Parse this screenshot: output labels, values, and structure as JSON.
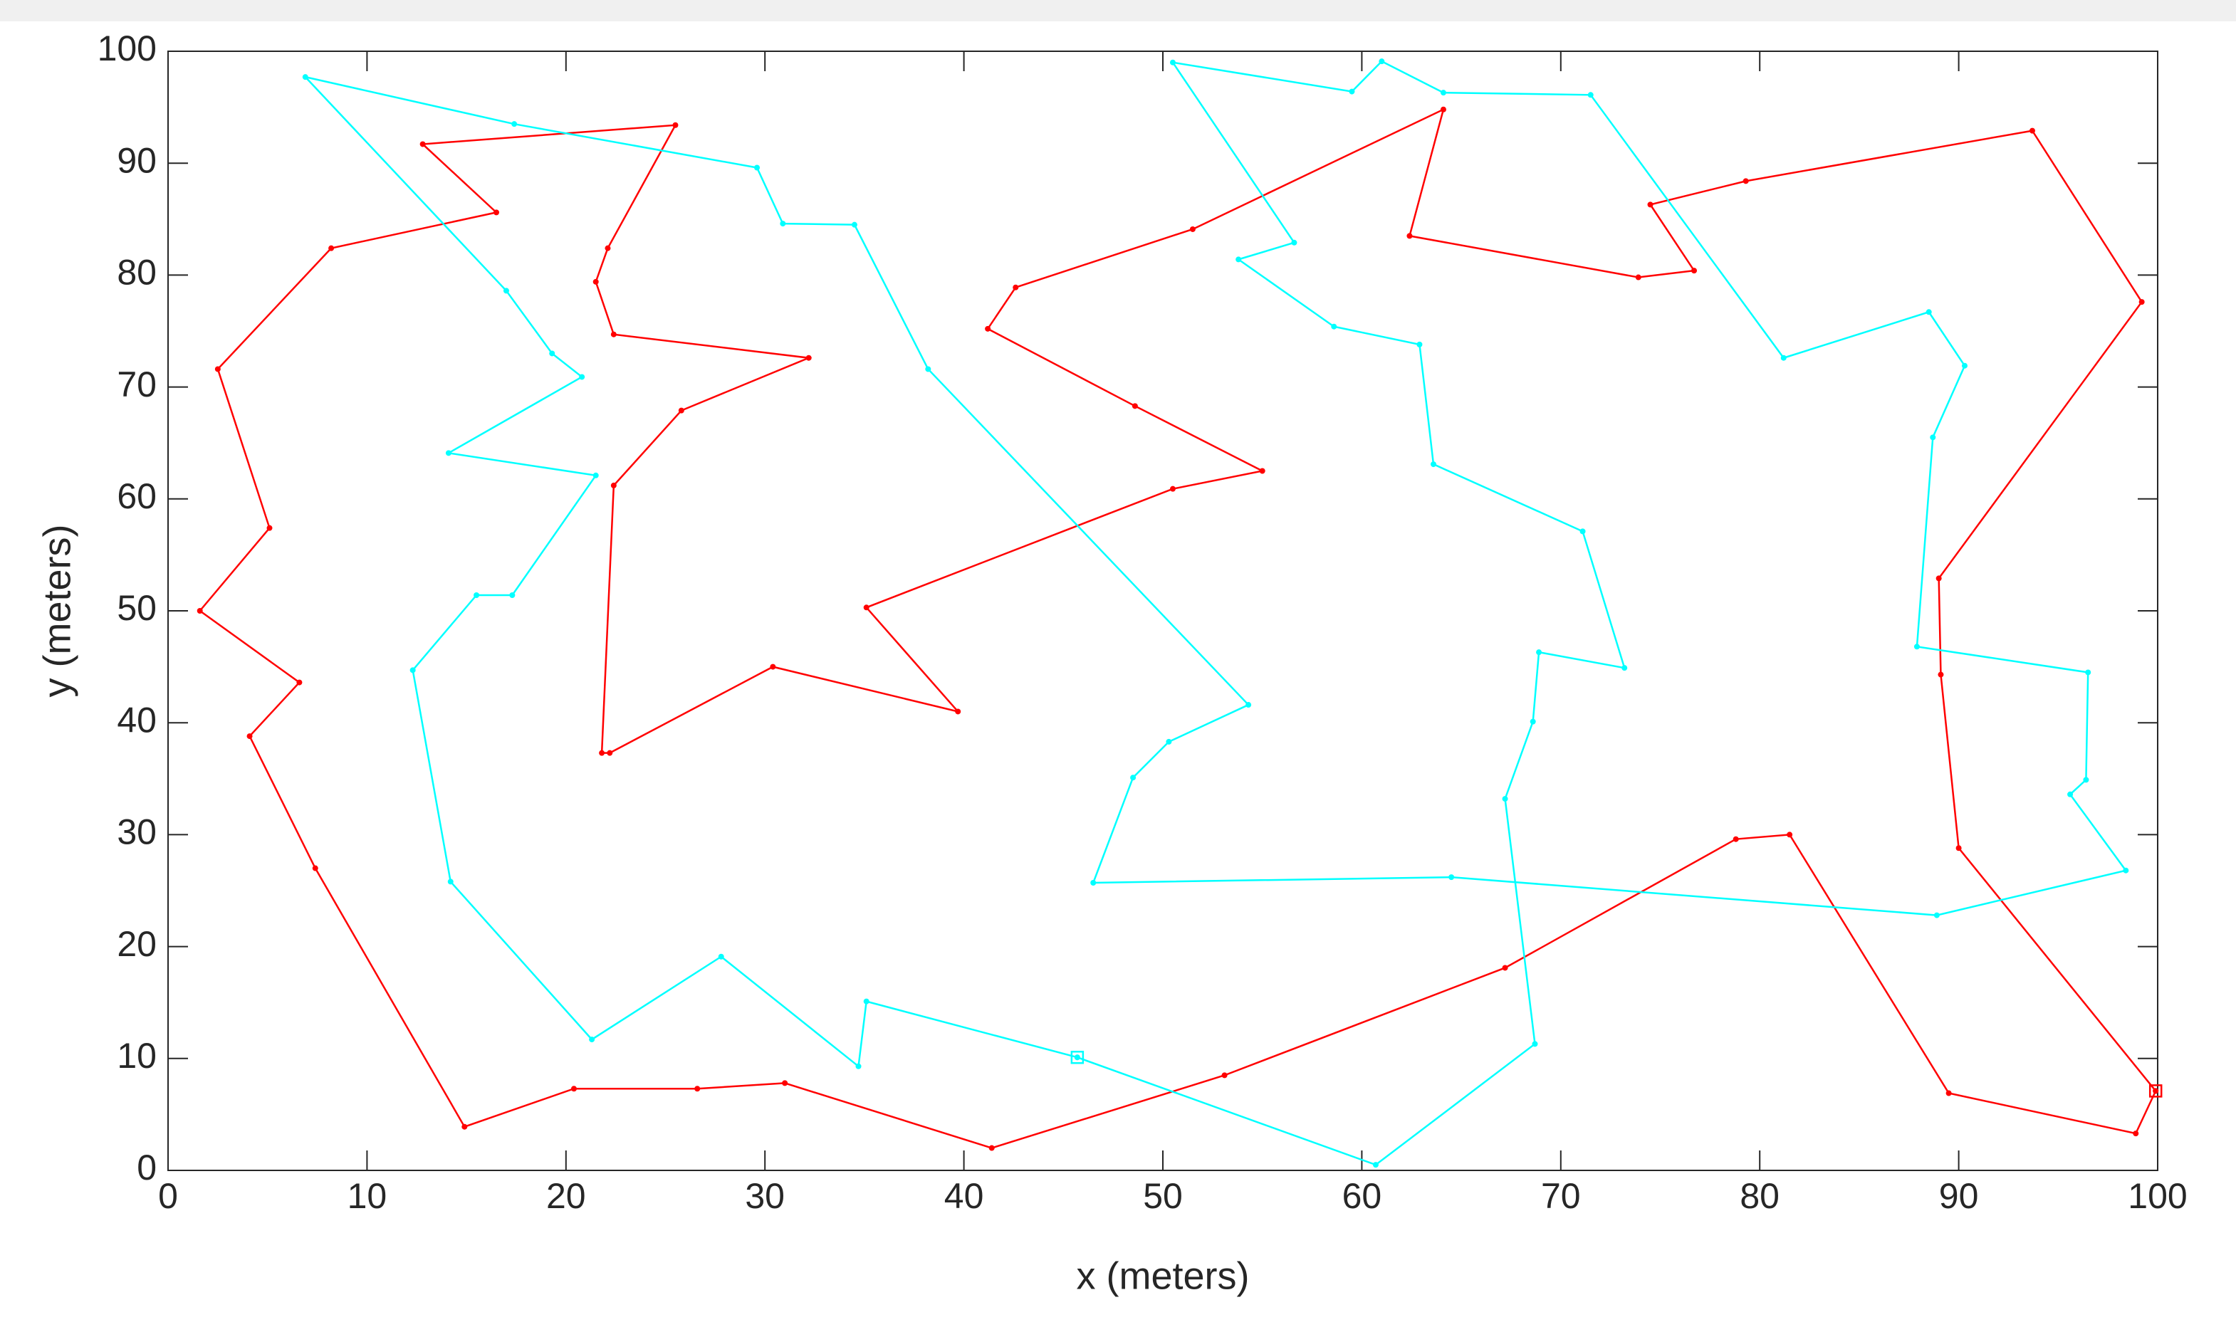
{
  "chart_data": {
    "type": "line",
    "xlabel": "x (meters)",
    "ylabel": "y (meters)",
    "xlim": [
      0,
      100
    ],
    "ylim": [
      0,
      100
    ],
    "xticks": [
      0,
      10,
      20,
      30,
      40,
      50,
      60,
      70,
      80,
      90,
      100
    ],
    "yticks": [
      0,
      10,
      20,
      30,
      40,
      50,
      60,
      70,
      80,
      90,
      100
    ],
    "grid": false,
    "marker": "dot",
    "start_marker": "square",
    "series": [
      {
        "color": "#ff0000",
        "x": [
          99.9,
          90.0,
          89.1,
          89.0,
          99.2,
          93.7,
          79.3,
          74.5,
          76.7,
          73.9,
          62.4,
          64.1,
          51.5,
          42.6,
          41.2,
          48.6,
          55.0,
          50.5,
          35.1,
          39.7,
          30.4,
          22.2,
          21.8,
          22.4,
          25.8,
          32.2,
          22.4,
          21.5,
          22.1,
          25.5,
          12.8,
          16.5,
          8.2,
          2.5,
          5.1,
          1.6,
          6.6,
          4.1,
          7.4,
          14.9,
          20.4,
          26.6,
          31.0,
          41.4,
          53.1,
          67.2,
          78.8,
          81.5,
          89.5,
          98.9,
          99.9
        ],
        "values": [
          7.1,
          28.8,
          44.3,
          52.9,
          77.6,
          92.9,
          88.4,
          86.3,
          80.4,
          79.8,
          83.5,
          94.8,
          84.1,
          78.9,
          75.2,
          68.3,
          62.5,
          60.9,
          50.3,
          41.0,
          45.0,
          37.3,
          37.3,
          61.2,
          67.9,
          72.6,
          74.7,
          79.4,
          82.4,
          93.4,
          91.7,
          85.6,
          82.4,
          71.6,
          57.4,
          50.0,
          43.6,
          38.8,
          27.0,
          3.9,
          7.3,
          7.3,
          7.8,
          2.0,
          8.5,
          18.1,
          29.6,
          30.0,
          6.9,
          3.3,
          7.1
        ]
      },
      {
        "color": "#00ffff",
        "x": [
          45.7,
          35.1,
          34.7,
          27.8,
          21.3,
          14.2,
          12.3,
          15.5,
          17.3,
          21.5,
          14.1,
          20.8,
          19.3,
          17.0,
          6.9,
          17.4,
          29.6,
          30.9,
          34.5,
          38.2,
          54.3,
          50.3,
          48.5,
          46.5,
          64.5,
          88.9,
          98.4,
          95.6,
          96.4,
          96.5,
          87.9,
          88.7,
          90.3,
          88.5,
          81.2,
          71.5,
          64.1,
          61.0,
          59.5,
          50.5,
          56.6,
          53.8,
          58.6,
          62.9,
          63.6,
          71.1,
          73.2,
          68.9,
          68.6,
          67.2,
          68.7,
          60.7,
          45.7
        ],
        "values": [
          10.1,
          15.1,
          9.3,
          19.1,
          11.7,
          25.8,
          44.7,
          51.4,
          51.4,
          62.1,
          64.1,
          70.9,
          73.0,
          78.6,
          97.7,
          93.5,
          89.6,
          84.6,
          84.5,
          71.6,
          41.6,
          38.3,
          35.1,
          25.7,
          26.2,
          22.8,
          26.8,
          33.6,
          34.9,
          44.5,
          46.8,
          65.5,
          71.9,
          76.7,
          72.6,
          96.1,
          96.3,
          99.1,
          96.4,
          99.0,
          82.9,
          81.4,
          75.4,
          73.8,
          63.1,
          57.1,
          44.9,
          46.3,
          40.1,
          33.2,
          11.3,
          0.5,
          10.1
        ]
      }
    ]
  }
}
